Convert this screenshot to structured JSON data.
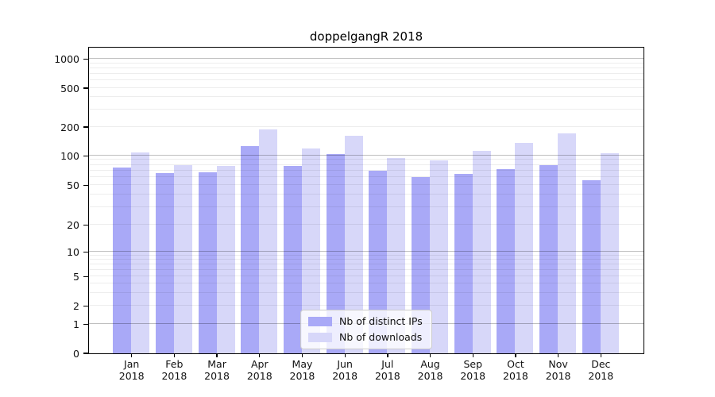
{
  "title": "doppelgangR 2018",
  "chart_data": {
    "type": "bar",
    "title": "doppelgangR 2018",
    "categories": [
      "Jan 2018",
      "Feb 2018",
      "Mar 2018",
      "Apr 2018",
      "May 2018",
      "Jun 2018",
      "Jul 2018",
      "Aug 2018",
      "Sep 2018",
      "Oct 2018",
      "Nov 2018",
      "Dec 2018"
    ],
    "series": [
      {
        "name": "Nb of distinct IPs",
        "color": "#a9a9f7",
        "values": [
          75,
          66,
          67,
          126,
          78,
          103,
          70,
          60,
          65,
          73,
          80,
          56
        ]
      },
      {
        "name": "Nb of downloads",
        "color": "#d7d7f9",
        "values": [
          107,
          80,
          78,
          188,
          118,
          160,
          95,
          89,
          112,
          134,
          170,
          106
        ]
      }
    ],
    "yticks": [
      0,
      1,
      2,
      5,
      10,
      20,
      50,
      100,
      200,
      500,
      1000
    ],
    "ylim": [
      0,
      1300
    ],
    "yscale": "pseudo-log",
    "grid": true,
    "legend_position": "lower center",
    "colors": {
      "bar_dark": "#a9a9f7",
      "bar_light": "#d7d7f9",
      "frame": "#000000",
      "grid_major": "#c0c0c0",
      "grid_minor": "#ededed",
      "legend_border": "#cccccc"
    }
  }
}
